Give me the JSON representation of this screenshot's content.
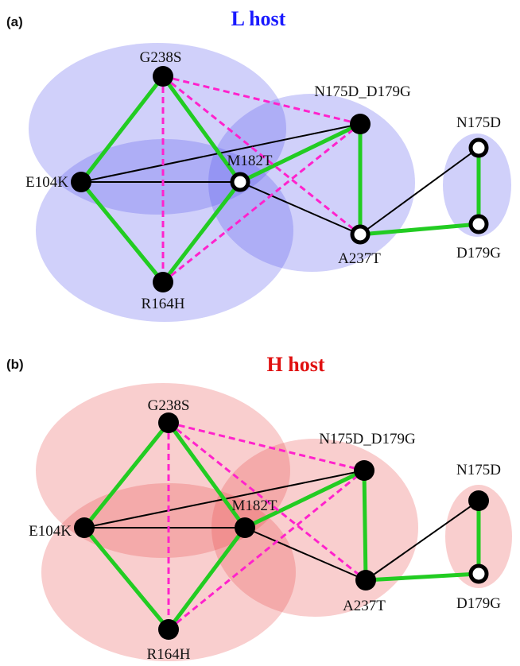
{
  "colors": {
    "panel_a_title": "#1a1aff",
    "panel_b_title": "#e01010",
    "positive_edge": "#22cc22",
    "negative_edge": "#ff22cc",
    "neutral_edge": "#000000",
    "panel_a_region": "#5555ee",
    "panel_b_region": "#e85050"
  },
  "panel_a": {
    "label": "(a)",
    "title": "L host",
    "nodes": [
      {
        "id": "G238S",
        "label": "G238S",
        "style": "filled"
      },
      {
        "id": "N175D_D179G",
        "label": "N175D_D179G",
        "style": "filled"
      },
      {
        "id": "E104K",
        "label": "E104K",
        "style": "filled"
      },
      {
        "id": "M182T",
        "label": "M182T",
        "style": "open"
      },
      {
        "id": "A237T",
        "label": "A237T",
        "style": "open"
      },
      {
        "id": "R164H",
        "label": "R164H",
        "style": "filled"
      },
      {
        "id": "N175D",
        "label": "N175D",
        "style": "open"
      },
      {
        "id": "D179G",
        "label": "D179G",
        "style": "open"
      }
    ]
  },
  "panel_b": {
    "label": "(b)",
    "title": "H host",
    "nodes": [
      {
        "id": "G238S",
        "label": "G238S",
        "style": "filled"
      },
      {
        "id": "N175D_D179G",
        "label": "N175D_D179G",
        "style": "filled"
      },
      {
        "id": "E104K",
        "label": "E104K",
        "style": "filled"
      },
      {
        "id": "M182T",
        "label": "M182T",
        "style": "filled"
      },
      {
        "id": "A237T",
        "label": "A237T",
        "style": "filled"
      },
      {
        "id": "R164H",
        "label": "R164H",
        "style": "filled"
      },
      {
        "id": "N175D",
        "label": "N175D",
        "style": "filled"
      },
      {
        "id": "D179G",
        "label": "D179G",
        "style": "open"
      }
    ]
  },
  "edges": [
    {
      "from": "G238S",
      "to": "E104K",
      "type": "positive"
    },
    {
      "from": "G238S",
      "to": "M182T",
      "type": "positive"
    },
    {
      "from": "E104K",
      "to": "R164H",
      "type": "positive"
    },
    {
      "from": "R164H",
      "to": "M182T",
      "type": "positive"
    },
    {
      "from": "M182T",
      "to": "N175D_D179G",
      "type": "positive"
    },
    {
      "from": "N175D_D179G",
      "to": "A237T",
      "type": "positive"
    },
    {
      "from": "A237T",
      "to": "D179G",
      "type": "positive"
    },
    {
      "from": "N175D",
      "to": "D179G",
      "type": "positive"
    },
    {
      "from": "E104K",
      "to": "N175D_D179G",
      "type": "neutral"
    },
    {
      "from": "E104K",
      "to": "M182T",
      "type": "neutral"
    },
    {
      "from": "M182T",
      "to": "A237T",
      "type": "neutral"
    },
    {
      "from": "A237T",
      "to": "N175D",
      "type": "neutral"
    },
    {
      "from": "G238S",
      "to": "N175D_D179G",
      "type": "negative"
    },
    {
      "from": "G238S",
      "to": "A237T",
      "type": "negative"
    },
    {
      "from": "G238S",
      "to": "R164H",
      "type": "negative"
    },
    {
      "from": "R164H",
      "to": "N175D_D179G",
      "type": "negative"
    }
  ]
}
